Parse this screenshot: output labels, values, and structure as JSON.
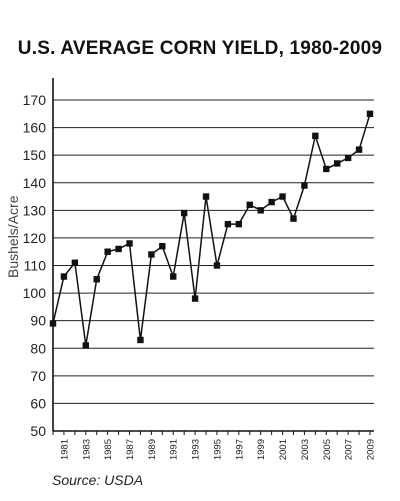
{
  "chart_data": {
    "type": "line",
    "title": "U.S. AVERAGE CORN YIELD, 1980-2009",
    "ylabel": "Bushels/Acre",
    "xlabel": "",
    "source": "Source: USDA",
    "ylim": [
      50,
      170
    ],
    "xlim": [
      1980,
      2009
    ],
    "yticks": [
      50,
      60,
      70,
      80,
      90,
      100,
      110,
      120,
      130,
      140,
      150,
      160,
      170
    ],
    "xtick_labels": [
      "1981",
      "1983",
      "1985",
      "1987",
      "1989",
      "1991",
      "1993",
      "1995",
      "1997",
      "1999",
      "2001",
      "2003",
      "2005",
      "2007",
      "2009"
    ],
    "grid": "horizontal",
    "series": [
      {
        "x": [
          1980,
          1981,
          1982,
          1983,
          1984,
          1985,
          1986,
          1987,
          1988,
          1989,
          1990,
          1991,
          1992,
          1993,
          1994,
          1995,
          1996,
          1997,
          1998,
          1999,
          2000,
          2001,
          2002,
          2003,
          2004,
          2005,
          2006,
          2007,
          2008,
          2009
        ],
        "values": [
          89,
          106,
          111,
          81,
          105,
          115,
          116,
          118,
          83,
          114,
          117,
          106,
          129,
          98,
          135,
          110,
          125,
          125,
          132,
          130,
          133,
          135,
          127,
          139,
          157,
          145,
          147,
          149,
          152,
          165
        ]
      }
    ]
  }
}
